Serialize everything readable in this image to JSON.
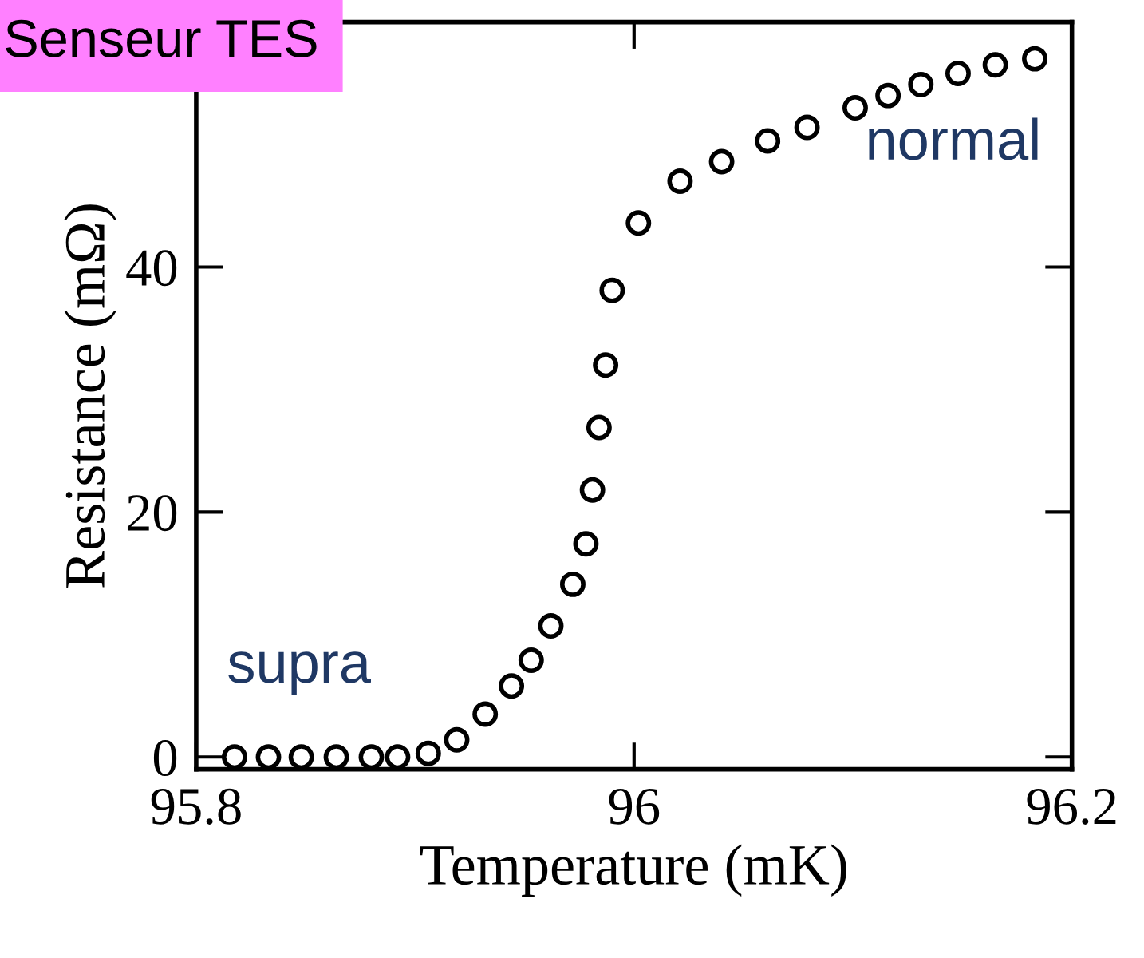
{
  "chart_data": {
    "type": "scatter",
    "title": "Senseur TES",
    "xlabel": "Temperature (mK)",
    "ylabel": "Resistance (mΩ)",
    "x": [
      95.8175,
      95.833,
      95.848,
      95.864,
      95.88,
      95.892,
      95.906,
      95.919,
      95.932,
      95.944,
      95.953,
      95.962,
      95.972,
      95.978,
      95.981,
      95.984,
      95.987,
      95.99,
      96.002,
      96.021,
      96.04,
      96.061,
      96.079,
      96.101,
      96.116,
      96.131,
      96.148,
      96.165,
      96.183
    ],
    "series": [
      {
        "color": "#000000",
        "values": [
          0,
          0,
          0,
          0,
          0,
          0,
          0.3,
          1.4,
          3.5,
          5.8,
          7.9,
          10.7,
          14.1,
          17.4,
          21.8,
          26.9,
          32.0,
          38.1,
          43.6,
          47.0,
          48.6,
          50.3,
          51.4,
          53.0,
          54.0,
          54.9,
          55.8,
          56.5,
          57.0
        ]
      }
    ],
    "marker": "circle",
    "xlim": [
      95.8,
      96.2
    ],
    "xticks": [
      95.8,
      96,
      96.2
    ],
    "ylim": [
      -1,
      60
    ],
    "yticks": [
      0,
      20,
      40
    ],
    "grid": false,
    "legend": false,
    "annotations": [
      "normal",
      "supra"
    ]
  }
}
